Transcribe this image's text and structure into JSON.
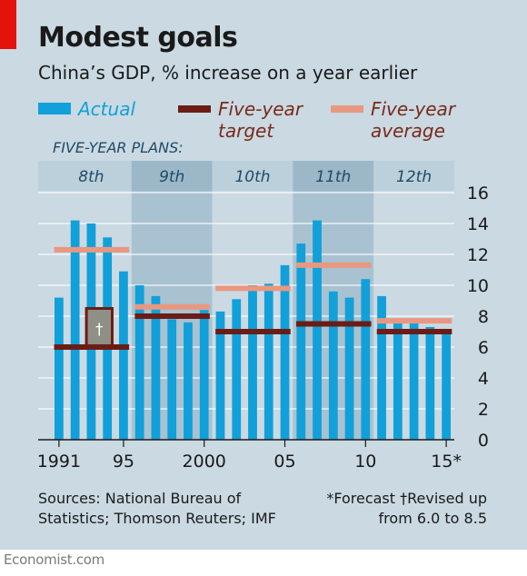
{
  "header": {
    "title": "Modest goals",
    "subtitle": "China’s GDP, % increase on a year earlier"
  },
  "legend": {
    "actual": "Actual",
    "target_line1": "Five-year",
    "target_line2": "target",
    "average_line1": "Five-year",
    "average_line2": "average"
  },
  "plans_heading": "FIVE-YEAR PLANS:",
  "plans": [
    {
      "label": "8th",
      "start": 1991,
      "end": 1995,
      "target": 6.0,
      "revised_target": 8.5,
      "average": 12.3
    },
    {
      "label": "9th",
      "start": 1996,
      "end": 2000,
      "target": 8.0,
      "average": 8.6
    },
    {
      "label": "10th",
      "start": 2001,
      "end": 2005,
      "target": 7.0,
      "average": 9.8
    },
    {
      "label": "11th",
      "start": 2006,
      "end": 2010,
      "target": 7.5,
      "average": 11.3
    },
    {
      "label": "12th",
      "start": 2011,
      "end": 2015,
      "target": 7.0,
      "average": 7.7
    }
  ],
  "chart_data": {
    "type": "bar",
    "x": [
      1991,
      1992,
      1993,
      1994,
      1995,
      1996,
      1997,
      1998,
      1999,
      2000,
      2001,
      2002,
      2003,
      2004,
      2005,
      2006,
      2007,
      2008,
      2009,
      2010,
      2011,
      2012,
      2013,
      2014,
      2015
    ],
    "values": [
      9.2,
      14.2,
      14.0,
      13.1,
      10.9,
      10.0,
      9.3,
      7.8,
      7.6,
      8.4,
      8.3,
      9.1,
      10.0,
      10.1,
      11.3,
      12.7,
      14.2,
      9.6,
      9.2,
      10.4,
      9.3,
      7.7,
      7.7,
      7.3,
      7.0
    ],
    "series_name": "Actual",
    "forecast_years": [
      2015
    ],
    "ylim": [
      0,
      16
    ],
    "yticks": [
      0,
      2,
      4,
      6,
      8,
      10,
      12,
      14,
      16
    ],
    "xtick_labels": [
      {
        "x": 1991,
        "label": "1991"
      },
      {
        "x": 1995,
        "label": "95"
      },
      {
        "x": 2000,
        "label": "2000"
      },
      {
        "x": 2005,
        "label": "05"
      },
      {
        "x": 2010,
        "label": "10"
      },
      {
        "x": 2015,
        "label": "15*"
      }
    ],
    "revised_marker": "†",
    "grid": true,
    "y_axis_side": "right"
  },
  "footer": {
    "sources_line1": "Sources: National Bureau of",
    "sources_line2": "Statistics; Thomson Reuters; IMF",
    "note_line1": "*Forecast   †Revised up",
    "note_line2": "from 6.0 to 8.5"
  },
  "brand": "Economist.com",
  "colors": {
    "panel": "#cad9e2",
    "band_dark": "#a8c2d1",
    "bar": "#11a0d9",
    "target": "#6b1d15",
    "average": "#e89880",
    "label_text": "#1f4a66",
    "legend_text": "#7a2a1a",
    "accent_red": "#e3120b",
    "revised_box": "#8f8f86"
  }
}
